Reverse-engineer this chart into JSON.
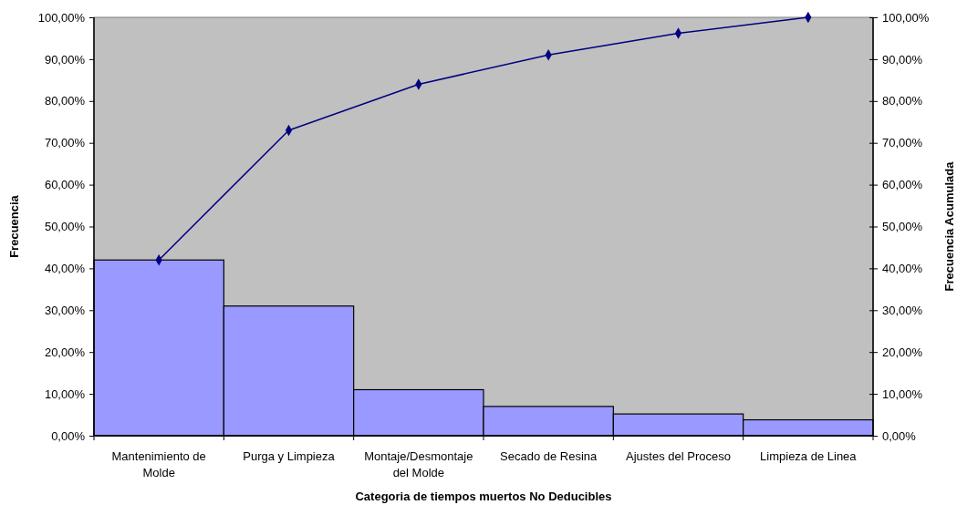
{
  "chart_data": {
    "type": "bar",
    "xlabel": "Categoria de tiempos muertos No Deducibles",
    "ylabel": "Frecuencia",
    "y2label": "Frecuencia Acumulada",
    "categories": [
      "Mantenimiento de Molde",
      "Purga y Limpieza",
      "Montaje/Desmontaje del Molde",
      "Secado de Resina",
      "Ajustes del Proceso",
      "Limpieza de Linea"
    ],
    "series": [
      {
        "color": "#9999ff",
        "values": [
          42,
          31,
          11,
          7,
          5.2,
          3.8
        ]
      },
      {
        "type": "line",
        "axis": "y2",
        "color": "#000080",
        "values": [
          42,
          73,
          84,
          91,
          96.2,
          100
        ]
      }
    ],
    "marker": "diamond",
    "ylim": [
      0,
      100
    ],
    "yticks": [
      {
        "value": 0,
        "label": "0,00%"
      },
      {
        "value": 10,
        "label": "10,00%"
      },
      {
        "value": 20,
        "label": "20,00%"
      },
      {
        "value": 30,
        "label": "30,00%"
      },
      {
        "value": 40,
        "label": "40,00%"
      },
      {
        "value": 50,
        "label": "50,00%"
      },
      {
        "value": 60,
        "label": "60,00%"
      },
      {
        "value": 70,
        "label": "70,00%"
      },
      {
        "value": 80,
        "label": "80,00%"
      },
      {
        "value": 90,
        "label": "90,00%"
      },
      {
        "value": 100,
        "label": "100,00%"
      }
    ],
    "y2lim": [
      0,
      100
    ],
    "y2ticks": [
      {
        "value": 0,
        "label": "0,00%"
      },
      {
        "value": 10,
        "label": "10,00%"
      },
      {
        "value": 20,
        "label": "20,00%"
      },
      {
        "value": 30,
        "label": "30,00%"
      },
      {
        "value": 40,
        "label": "40,00%"
      },
      {
        "value": 50,
        "label": "50,00%"
      },
      {
        "value": 60,
        "label": "60,00%"
      },
      {
        "value": 70,
        "label": "70,00%"
      },
      {
        "value": 80,
        "label": "80,00%"
      },
      {
        "value": 90,
        "label": "90,00%"
      },
      {
        "value": 100,
        "label": "100,00%"
      }
    ]
  }
}
